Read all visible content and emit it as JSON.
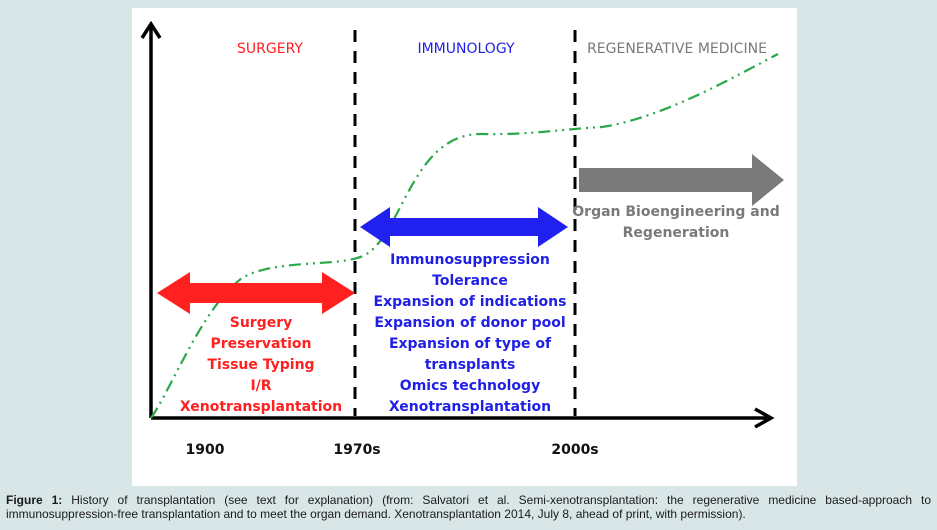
{
  "eras": {
    "surgery": "SURGERY",
    "immunology": "IMMUNOLOGY",
    "regenerative": "REGENERATIVE MEDICINE"
  },
  "colors": {
    "surgery": "#ff2020",
    "immunology": "#1f1fe6",
    "regenerative": "#7a7a7a",
    "curve": "#2aa84a",
    "axis": "#000000"
  },
  "x_ticks": [
    "1900",
    "1970s",
    "2000s"
  ],
  "surgery_items": [
    "Surgery",
    "Preservation",
    "Tissue Typing",
    "I/R",
    "Xenotransplantation"
  ],
  "immunology_items": [
    "Immunosuppression",
    "Tolerance",
    "Expansion of indications",
    "Expansion of donor pool",
    "Expansion of type of",
    "transplants",
    "Omics technology",
    "Xenotransplantation"
  ],
  "regenerative_items": [
    "Organ Bioengineering and",
    "Regeneration"
  ],
  "caption": {
    "label": "Figure 1:",
    "text": "History of transplantation (see text for explanation) (from: Salvatori et al. Semi-xenotransplantation: the regenerative medicine based-approach to immunosuppression-free transplantation and to meet the organ demand. Xenotransplantation 2014, July 8, ahead of print, with permission)."
  }
}
